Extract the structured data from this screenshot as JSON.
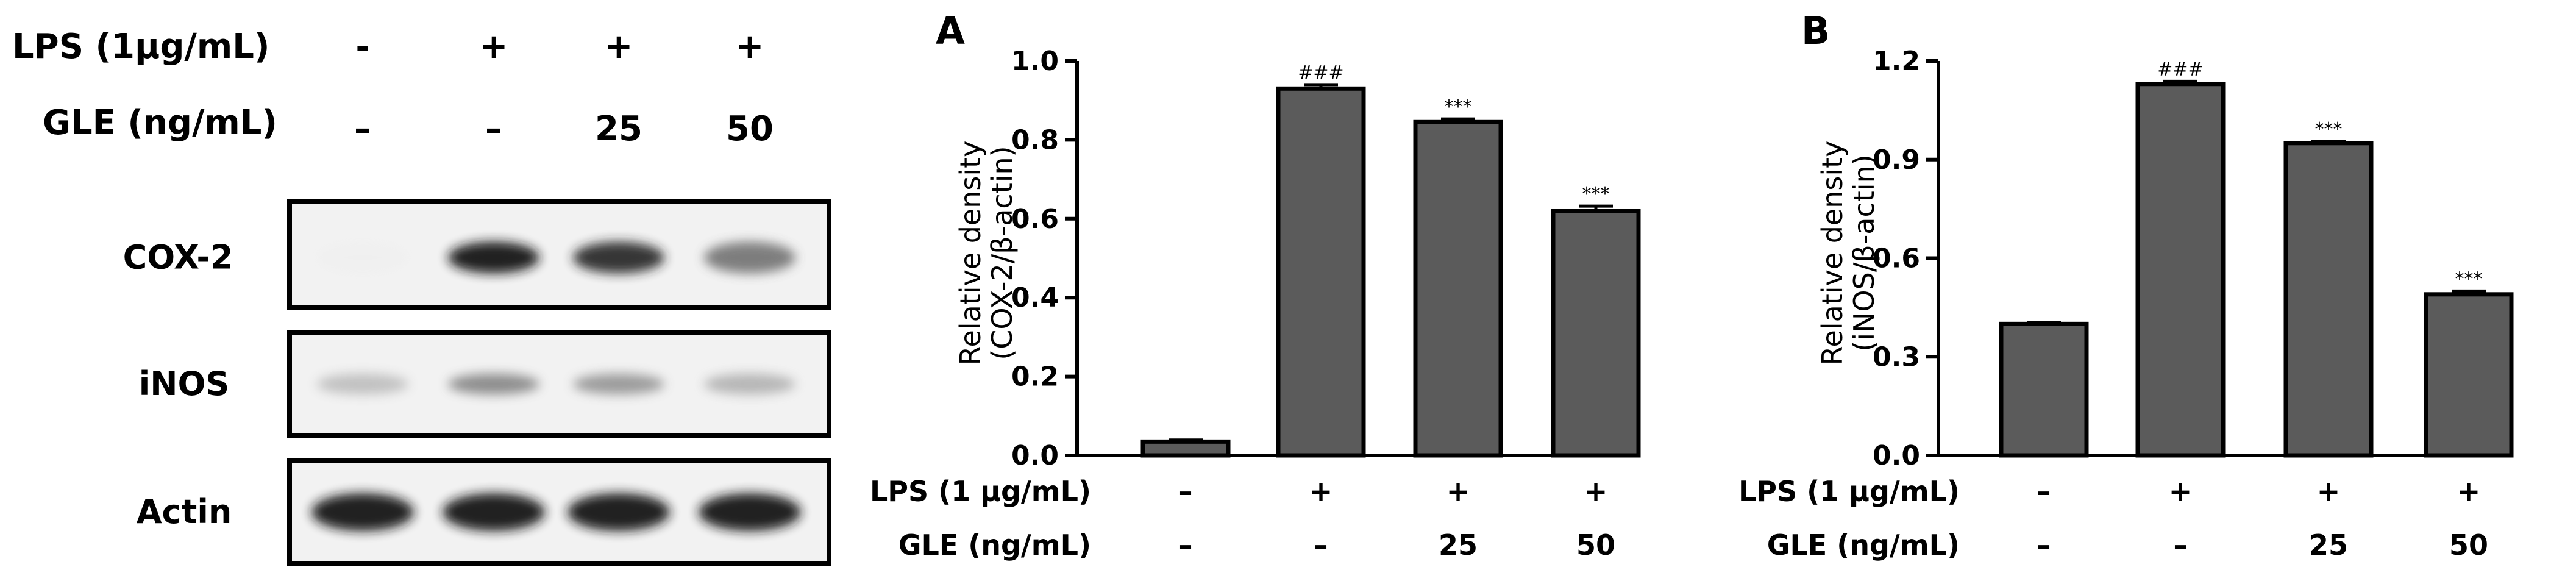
{
  "blot": {
    "conditions": [
      {
        "label": "LPS (1μg/mL)",
        "values": [
          "-",
          "+",
          "+",
          "+"
        ]
      },
      {
        "label": "GLE (ng/mL)",
        "values": [
          "–",
          "–",
          "25",
          "50"
        ]
      }
    ],
    "rows": [
      {
        "label": "COX-2",
        "intensity": [
          0.03,
          0.95,
          0.9,
          0.7
        ]
      },
      {
        "label": "iNOS",
        "intensity": [
          0.45,
          0.65,
          0.6,
          0.5
        ]
      },
      {
        "label": "Actin",
        "intensity": [
          0.95,
          0.95,
          0.95,
          0.95
        ]
      }
    ]
  },
  "chart_data": [
    {
      "type": "bar",
      "panel": "A",
      "ylabel_line1": "Relative density",
      "ylabel_line2": "(COX-2/β-actin)",
      "ylim": [
        0,
        1.0
      ],
      "yticks": [
        "0.0",
        "0.2",
        "0.4",
        "0.6",
        "0.8",
        "1.0"
      ],
      "values": [
        0.035,
        0.93,
        0.845,
        0.62
      ],
      "errors": [
        0.004,
        0.01,
        0.008,
        0.012
      ],
      "annotations": [
        "",
        "###",
        "***",
        "***"
      ],
      "conditions": [
        {
          "label": "LPS (1 μg/mL)",
          "values": [
            "–",
            "+",
            "+",
            "+"
          ]
        },
        {
          "label": "GLE (ng/mL)",
          "values": [
            "–",
            "–",
            "25",
            "50"
          ]
        }
      ],
      "bar_color": "#5b5b5b"
    },
    {
      "type": "bar",
      "panel": "B",
      "ylabel_line1": "Relative density",
      "ylabel_line2": "(iNOS/β-actin)",
      "ylim": [
        0,
        1.2
      ],
      "yticks": [
        "0.0",
        "0.3",
        "0.6",
        "0.9",
        "1.2"
      ],
      "values": [
        0.4,
        1.13,
        0.95,
        0.49
      ],
      "errors": [
        0.004,
        0.008,
        0.005,
        0.01
      ],
      "annotations": [
        "",
        "###",
        "***",
        "***"
      ],
      "conditions": [
        {
          "label": "LPS (1 μg/mL)",
          "values": [
            "–",
            "+",
            "+",
            "+"
          ]
        },
        {
          "label": "GLE (ng/mL)",
          "values": [
            "–",
            "–",
            "25",
            "50"
          ]
        }
      ],
      "bar_color": "#5b5b5b"
    }
  ]
}
